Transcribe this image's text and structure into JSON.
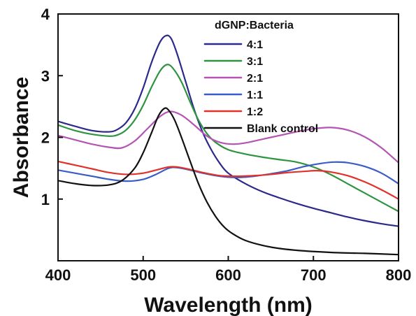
{
  "chart_data": {
    "type": "line",
    "xlabel": "Wavelength (nm)",
    "ylabel": "Absorbance",
    "xlim": [
      400,
      800
    ],
    "ylim": [
      0,
      4
    ],
    "xticks": [
      400,
      500,
      600,
      700,
      800
    ],
    "yticks": [
      1,
      2,
      3,
      4
    ],
    "grid": false,
    "legend_title": "dGNP:Bacteria",
    "legend_position": "top-right",
    "series": [
      {
        "name": "4:1",
        "color": "#2b2a8a",
        "points": [
          [
            400,
            2.26
          ],
          [
            420,
            2.18
          ],
          [
            440,
            2.11
          ],
          [
            460,
            2.09
          ],
          [
            470,
            2.13
          ],
          [
            480,
            2.24
          ],
          [
            490,
            2.46
          ],
          [
            500,
            2.8
          ],
          [
            510,
            3.22
          ],
          [
            520,
            3.55
          ],
          [
            527,
            3.65
          ],
          [
            533,
            3.6
          ],
          [
            540,
            3.35
          ],
          [
            550,
            2.9
          ],
          [
            560,
            2.45
          ],
          [
            570,
            2.08
          ],
          [
            580,
            1.8
          ],
          [
            590,
            1.58
          ],
          [
            600,
            1.42
          ],
          [
            620,
            1.25
          ],
          [
            640,
            1.12
          ],
          [
            660,
            1.02
          ],
          [
            680,
            0.93
          ],
          [
            700,
            0.85
          ],
          [
            720,
            0.78
          ],
          [
            740,
            0.71
          ],
          [
            760,
            0.65
          ],
          [
            780,
            0.6
          ],
          [
            800,
            0.56
          ]
        ]
      },
      {
        "name": "3:1",
        "color": "#2e9440",
        "points": [
          [
            400,
            2.2
          ],
          [
            420,
            2.11
          ],
          [
            440,
            2.05
          ],
          [
            460,
            2.02
          ],
          [
            470,
            2.04
          ],
          [
            480,
            2.12
          ],
          [
            490,
            2.28
          ],
          [
            500,
            2.52
          ],
          [
            510,
            2.82
          ],
          [
            520,
            3.08
          ],
          [
            528,
            3.18
          ],
          [
            535,
            3.12
          ],
          [
            545,
            2.9
          ],
          [
            555,
            2.58
          ],
          [
            565,
            2.28
          ],
          [
            575,
            2.06
          ],
          [
            585,
            1.92
          ],
          [
            600,
            1.8
          ],
          [
            620,
            1.73
          ],
          [
            640,
            1.68
          ],
          [
            660,
            1.64
          ],
          [
            680,
            1.6
          ],
          [
            700,
            1.52
          ],
          [
            720,
            1.4
          ],
          [
            740,
            1.25
          ],
          [
            760,
            1.1
          ],
          [
            780,
            0.95
          ],
          [
            800,
            0.8
          ]
        ]
      },
      {
        "name": "2:1",
        "color": "#b455b4",
        "points": [
          [
            400,
            2.03
          ],
          [
            420,
            1.96
          ],
          [
            440,
            1.89
          ],
          [
            460,
            1.84
          ],
          [
            475,
            1.83
          ],
          [
            490,
            1.94
          ],
          [
            505,
            2.14
          ],
          [
            520,
            2.34
          ],
          [
            532,
            2.42
          ],
          [
            545,
            2.36
          ],
          [
            560,
            2.2
          ],
          [
            575,
            2.02
          ],
          [
            590,
            1.92
          ],
          [
            605,
            1.89
          ],
          [
            620,
            1.91
          ],
          [
            640,
            1.97
          ],
          [
            660,
            2.03
          ],
          [
            680,
            2.09
          ],
          [
            700,
            2.14
          ],
          [
            720,
            2.16
          ],
          [
            740,
            2.12
          ],
          [
            760,
            2.01
          ],
          [
            780,
            1.83
          ],
          [
            800,
            1.59
          ]
        ]
      },
      {
        "name": "1:1",
        "color": "#3a5cc7",
        "points": [
          [
            400,
            1.47
          ],
          [
            420,
            1.42
          ],
          [
            440,
            1.37
          ],
          [
            460,
            1.32
          ],
          [
            480,
            1.29
          ],
          [
            500,
            1.32
          ],
          [
            515,
            1.4
          ],
          [
            530,
            1.5
          ],
          [
            540,
            1.51
          ],
          [
            555,
            1.47
          ],
          [
            570,
            1.42
          ],
          [
            590,
            1.37
          ],
          [
            610,
            1.35
          ],
          [
            630,
            1.37
          ],
          [
            650,
            1.41
          ],
          [
            670,
            1.46
          ],
          [
            690,
            1.53
          ],
          [
            710,
            1.58
          ],
          [
            725,
            1.6
          ],
          [
            740,
            1.59
          ],
          [
            760,
            1.53
          ],
          [
            780,
            1.42
          ],
          [
            800,
            1.25
          ]
        ]
      },
      {
        "name": "1:2",
        "color": "#e0312b",
        "points": [
          [
            400,
            1.61
          ],
          [
            420,
            1.55
          ],
          [
            440,
            1.49
          ],
          [
            460,
            1.43
          ],
          [
            480,
            1.4
          ],
          [
            500,
            1.42
          ],
          [
            515,
            1.47
          ],
          [
            530,
            1.52
          ],
          [
            540,
            1.52
          ],
          [
            555,
            1.48
          ],
          [
            570,
            1.43
          ],
          [
            590,
            1.38
          ],
          [
            610,
            1.37
          ],
          [
            630,
            1.38
          ],
          [
            650,
            1.4
          ],
          [
            670,
            1.43
          ],
          [
            690,
            1.45
          ],
          [
            705,
            1.46
          ],
          [
            720,
            1.44
          ],
          [
            740,
            1.38
          ],
          [
            760,
            1.28
          ],
          [
            780,
            1.15
          ],
          [
            800,
            1.0
          ]
        ]
      },
      {
        "name": "Blank control",
        "color": "#111111",
        "points": [
          [
            400,
            1.3
          ],
          [
            420,
            1.25
          ],
          [
            440,
            1.22
          ],
          [
            460,
            1.23
          ],
          [
            475,
            1.3
          ],
          [
            490,
            1.5
          ],
          [
            500,
            1.75
          ],
          [
            510,
            2.08
          ],
          [
            518,
            2.35
          ],
          [
            525,
            2.47
          ],
          [
            530,
            2.44
          ],
          [
            537,
            2.28
          ],
          [
            545,
            2.0
          ],
          [
            555,
            1.62
          ],
          [
            565,
            1.25
          ],
          [
            575,
            0.95
          ],
          [
            585,
            0.72
          ],
          [
            595,
            0.55
          ],
          [
            605,
            0.44
          ],
          [
            620,
            0.33
          ],
          [
            640,
            0.25
          ],
          [
            660,
            0.2
          ],
          [
            680,
            0.17
          ],
          [
            700,
            0.15
          ],
          [
            730,
            0.13
          ],
          [
            760,
            0.12
          ],
          [
            800,
            0.1
          ]
        ]
      }
    ]
  }
}
